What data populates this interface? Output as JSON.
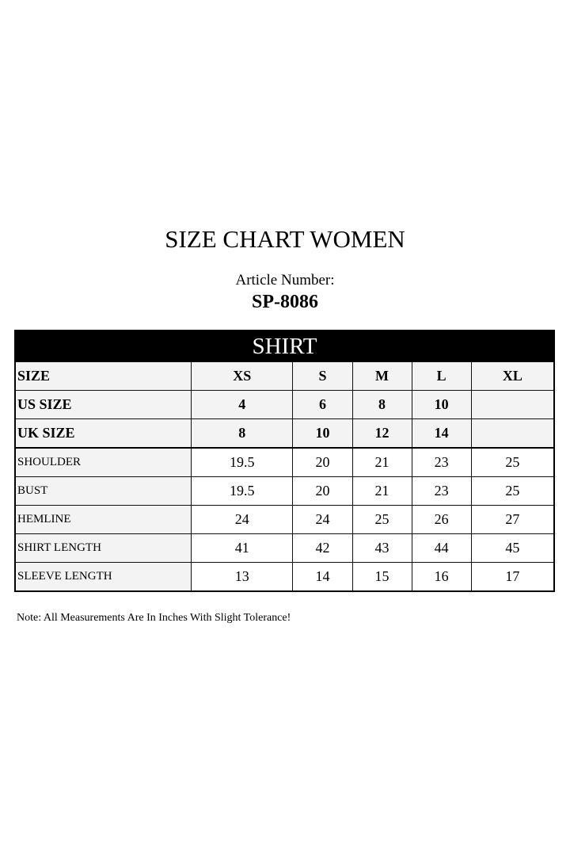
{
  "title": "SIZE CHART WOMEN",
  "article_label": "Article Number:",
  "article_number": "SP-8086",
  "table": {
    "section": "SHIRT",
    "header_rows": [
      {
        "label": "SIZE",
        "values": [
          "XS",
          "S",
          "M",
          "L",
          "XL"
        ]
      },
      {
        "label": "US SIZE",
        "values": [
          "4",
          "6",
          "8",
          "10",
          ""
        ]
      },
      {
        "label": "UK SIZE",
        "values": [
          "8",
          "10",
          "12",
          "14",
          ""
        ]
      }
    ],
    "rows": [
      {
        "label": "SHOULDER",
        "values": [
          "19.5",
          "20",
          "21",
          "23",
          "25"
        ]
      },
      {
        "label": "BUST",
        "values": [
          "19.5",
          "20",
          "21",
          "23",
          "25"
        ]
      },
      {
        "label": "HEMLINE",
        "values": [
          "24",
          "24",
          "25",
          "26",
          "27"
        ]
      },
      {
        "label": "SHIRT LENGTH",
        "values": [
          "41",
          "42",
          "43",
          "44",
          "45"
        ]
      },
      {
        "label": "SLEEVE LENGTH",
        "values": [
          "13",
          "14",
          "15",
          "16",
          "17"
        ]
      }
    ]
  },
  "note": "Note: All Measurements Are In Inches With Slight Tolerance!"
}
